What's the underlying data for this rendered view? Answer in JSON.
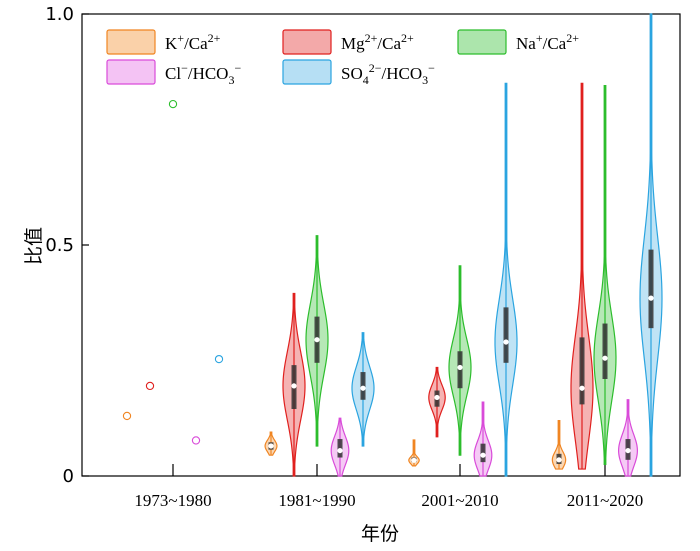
{
  "chart_data": {
    "type": "violin",
    "xlabel": "年份",
    "ylabel": "比值",
    "ylim": [
      0,
      1.0
    ],
    "yticks": [
      "0",
      "0.5",
      "1.0"
    ],
    "categories": [
      "1973~1980",
      "1981~1990",
      "2001~2010",
      "2011~2020"
    ],
    "legend": {
      "placement": "top-left",
      "entries": [
        {
          "base": "K",
          "sup1": "+",
          "mid": "/Ca",
          "sup2": "2+",
          "sub": "",
          "sup3": ""
        },
        {
          "base": "Mg",
          "sup1": "2+",
          "mid": "/Ca",
          "sup2": "2+",
          "sub": "",
          "sup3": ""
        },
        {
          "base": "Na",
          "sup1": "+",
          "mid": "/Ca",
          "sup2": "2+",
          "sub": "",
          "sup3": ""
        },
        {
          "base": "Cl",
          "sup1": "−",
          "mid": "/HCO",
          "sup2": "",
          "sub": "3",
          "sup3": "−"
        },
        {
          "base": "SO",
          "sub0": "4",
          "sup1": "2−",
          "mid": "/HCO",
          "sup2": "",
          "sub": "3",
          "sup3": "−"
        }
      ]
    },
    "series": [
      {
        "color": "#f08522",
        "fill": "#f9c99a",
        "groups": [
          {
            "points": [
              0.13
            ]
          },
          {
            "min": 0.045,
            "q1": 0.057,
            "median": 0.065,
            "q3": 0.073,
            "max": 0.095
          },
          {
            "min": 0.022,
            "q1": 0.03,
            "median": 0.034,
            "q3": 0.04,
            "max": 0.078
          },
          {
            "min": 0.015,
            "q1": 0.026,
            "median": 0.035,
            "q3": 0.048,
            "max": 0.12
          }
        ]
      },
      {
        "color": "#e0201e",
        "fill": "#f19a9a",
        "groups": [
          {
            "points": [
              0.195
            ]
          },
          {
            "min": 0.0,
            "q1": 0.145,
            "median": 0.195,
            "q3": 0.24,
            "max": 0.395
          },
          {
            "min": 0.085,
            "q1": 0.15,
            "median": 0.17,
            "q3": 0.185,
            "max": 0.235
          },
          {
            "min": 0.015,
            "q1": 0.155,
            "median": 0.19,
            "q3": 0.3,
            "max": 0.85
          }
        ]
      },
      {
        "color": "#2cbd2c",
        "fill": "#9de09d",
        "groups": [
          {
            "points": [
              0.805
            ]
          },
          {
            "min": 0.065,
            "q1": 0.245,
            "median": 0.295,
            "q3": 0.345,
            "max": 0.52
          },
          {
            "min": 0.045,
            "q1": 0.19,
            "median": 0.235,
            "q3": 0.27,
            "max": 0.455
          },
          {
            "min": 0.025,
            "q1": 0.21,
            "median": 0.255,
            "q3": 0.33,
            "max": 0.845
          }
        ]
      },
      {
        "color": "#d94bd9",
        "fill": "#f2b8f2",
        "groups": [
          {
            "points": [
              0.077
            ]
          },
          {
            "min": 0.0,
            "q1": 0.04,
            "median": 0.055,
            "q3": 0.08,
            "max": 0.125
          },
          {
            "min": 0.0,
            "q1": 0.03,
            "median": 0.045,
            "q3": 0.07,
            "max": 0.16
          },
          {
            "min": 0.0,
            "q1": 0.035,
            "median": 0.055,
            "q3": 0.08,
            "max": 0.165
          }
        ]
      },
      {
        "color": "#2aa4e0",
        "fill": "#a9d9f2",
        "groups": [
          {
            "points": [
              0.253
            ]
          },
          {
            "min": 0.065,
            "q1": 0.165,
            "median": 0.19,
            "q3": 0.225,
            "max": 0.31
          },
          {
            "min": 0.0,
            "q1": 0.245,
            "median": 0.29,
            "q3": 0.365,
            "max": 0.85
          },
          {
            "min": 0.0,
            "q1": 0.32,
            "median": 0.385,
            "q3": 0.49,
            "max": 1.0
          }
        ]
      }
    ]
  }
}
